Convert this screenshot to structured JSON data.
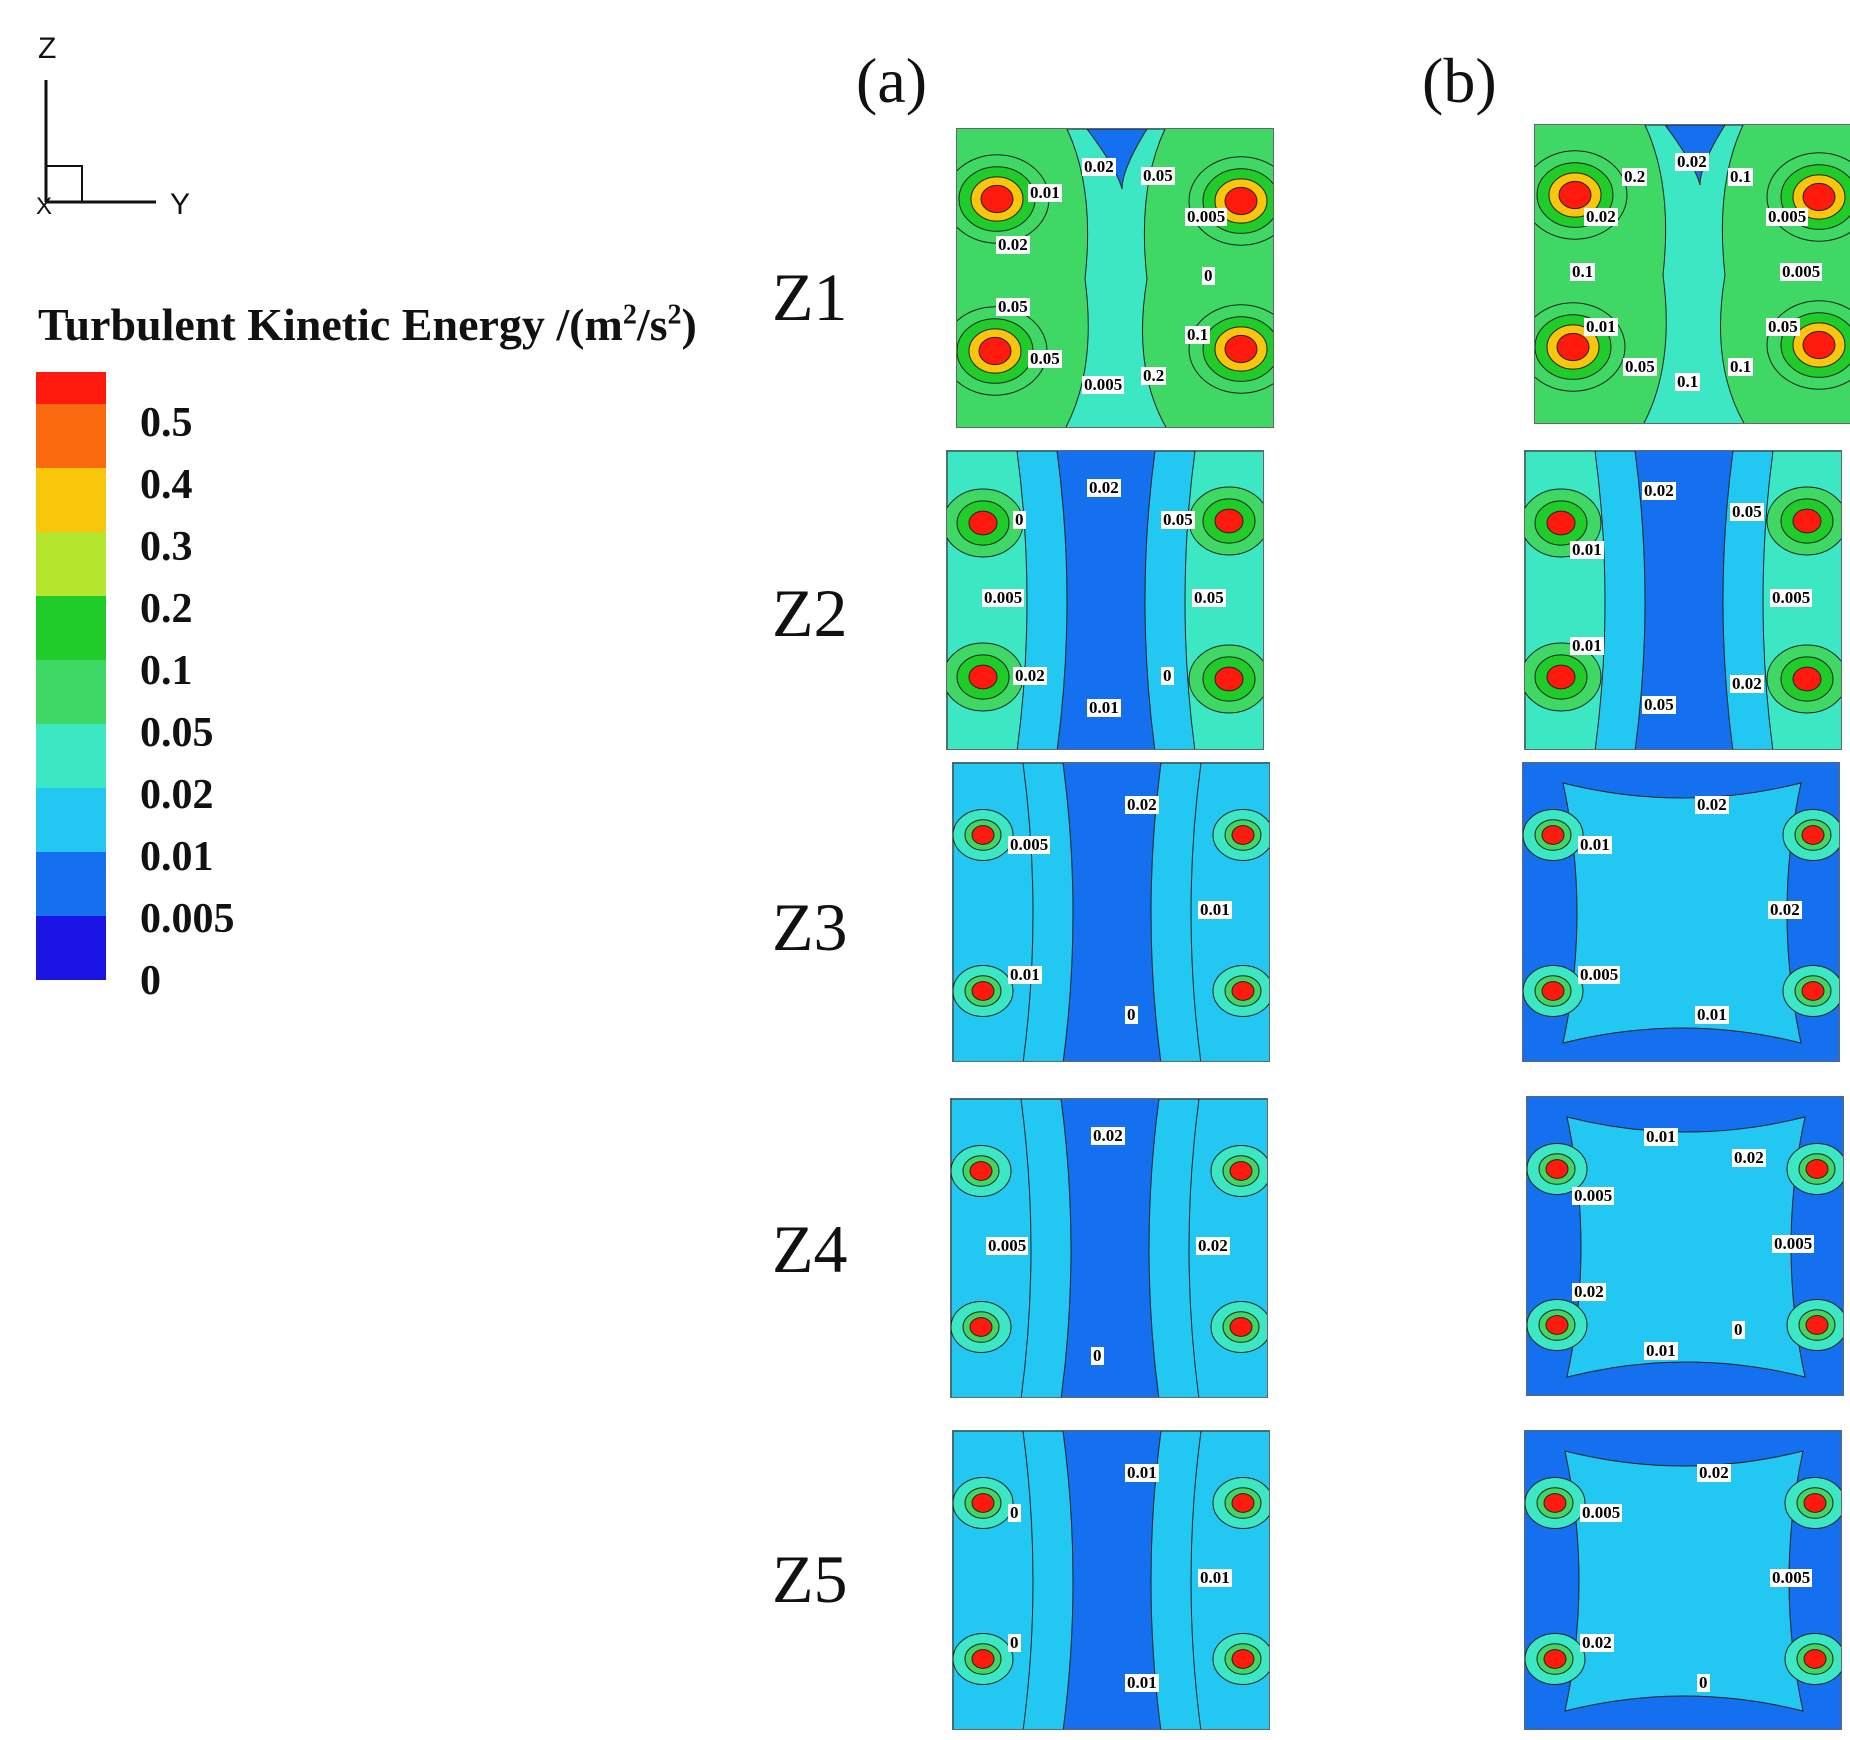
{
  "axes_triad": {
    "vertical_label": "Z",
    "horizontal_label": "Y",
    "corner_label": "X"
  },
  "legend": {
    "title": "Turbulent Kinetic Energy /(m",
    "title_sup1": "2",
    "title_mid": "/s",
    "title_sup2": "2",
    "title_end": ")",
    "levels": [
      {
        "label": "0.5",
        "color": "#ff1a0d"
      },
      {
        "label": "0.4",
        "color": "#fb6a0e"
      },
      {
        "label": "0.3",
        "color": "#fac60c"
      },
      {
        "label": "0.2",
        "color": "#b5e52c"
      },
      {
        "label": "0.1",
        "color": "#1fcc2a"
      },
      {
        "label": "0.05",
        "color": "#3fd865"
      },
      {
        "label": "0.02",
        "color": "#3ce8c4"
      },
      {
        "label": "0.01",
        "color": "#22c8f2"
      },
      {
        "label": "0.005",
        "color": "#1470ee"
      },
      {
        "label": "0",
        "color": "#1a14e4"
      }
    ]
  },
  "columns": [
    "(a)",
    "(b)"
  ],
  "rows": [
    {
      "label": "Z1",
      "a": {
        "variant": "high",
        "contour_labels": [
          "0",
          "0.1",
          "0.2",
          "0.005",
          "0.05",
          "0.05",
          "0.02",
          "0.01",
          "0.02",
          "0.05",
          "0.005"
        ]
      },
      "b": {
        "variant": "high",
        "contour_labels": [
          "0.005",
          "0.05",
          "0.1",
          "0.1",
          "0.05",
          "0.01",
          "0.1",
          "0.02",
          "0.2",
          "0.02",
          "0.1",
          "0.005"
        ]
      }
    },
    {
      "label": "Z2",
      "a": {
        "variant": "mid",
        "contour_labels": [
          "0.05",
          "0",
          "0.01",
          "0.02",
          "0.005",
          "0",
          "0.02",
          "0.05"
        ]
      },
      "b": {
        "variant": "mid",
        "contour_labels": [
          "0.005",
          "0.02",
          "0.05",
          "0.01",
          "0.01",
          "0.02",
          "0.05"
        ]
      }
    },
    {
      "label": "Z3",
      "a": {
        "variant": "low",
        "contour_labels": [
          "0.01",
          "0",
          "0.01",
          "0.005",
          "0.02"
        ]
      },
      "b": {
        "variant": "mildb",
        "contour_labels": [
          "0.02",
          "0.01",
          "0.005",
          "0.01",
          "0.02"
        ]
      }
    },
    {
      "label": "Z4",
      "a": {
        "variant": "lower",
        "contour_labels": [
          "0.02",
          "0",
          "0.005",
          "0.02"
        ]
      },
      "b": {
        "variant": "wideb",
        "contour_labels": [
          "0.005",
          "0",
          "0.01",
          "0.02",
          "0.005",
          "0.01",
          "0.02"
        ]
      }
    },
    {
      "label": "Z5",
      "a": {
        "variant": "lowest",
        "contour_labels": [
          "0.01",
          "0.01",
          "0",
          "0",
          "0.01"
        ]
      },
      "b": {
        "variant": "wideb",
        "contour_labels": [
          "0.005",
          "0",
          "0.02",
          "0.005",
          "0.02"
        ]
      }
    }
  ]
}
